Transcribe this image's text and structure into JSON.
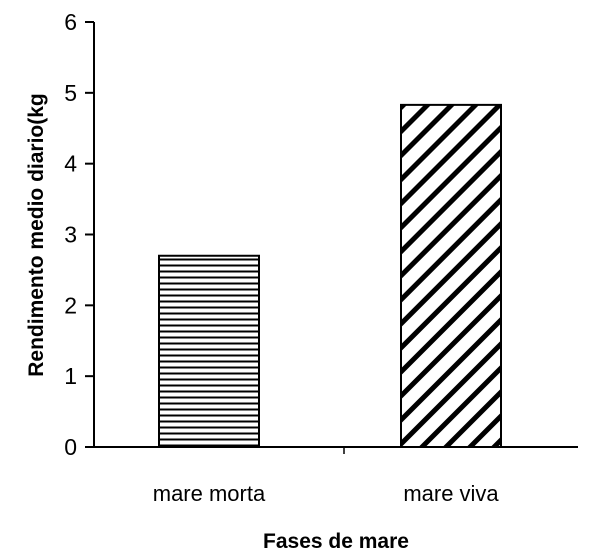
{
  "chart_data": {
    "type": "bar",
    "categories": [
      "mare morta",
      "mare viva"
    ],
    "values": [
      2.7,
      4.83
    ],
    "patterns": [
      "horizontal-lines",
      "diagonal-lines"
    ],
    "xlabel": "Fases de mare",
    "ylabel": "Rendimento medio diario(kg",
    "ylim": [
      0,
      6
    ],
    "yticks": [
      "0",
      "1",
      "2",
      "3",
      "4",
      "5",
      "6"
    ],
    "grid": false,
    "legend": "none",
    "colors": {
      "axis": "#000000",
      "bar_fill": "#ffffff",
      "bar_pattern": "#000000"
    }
  }
}
